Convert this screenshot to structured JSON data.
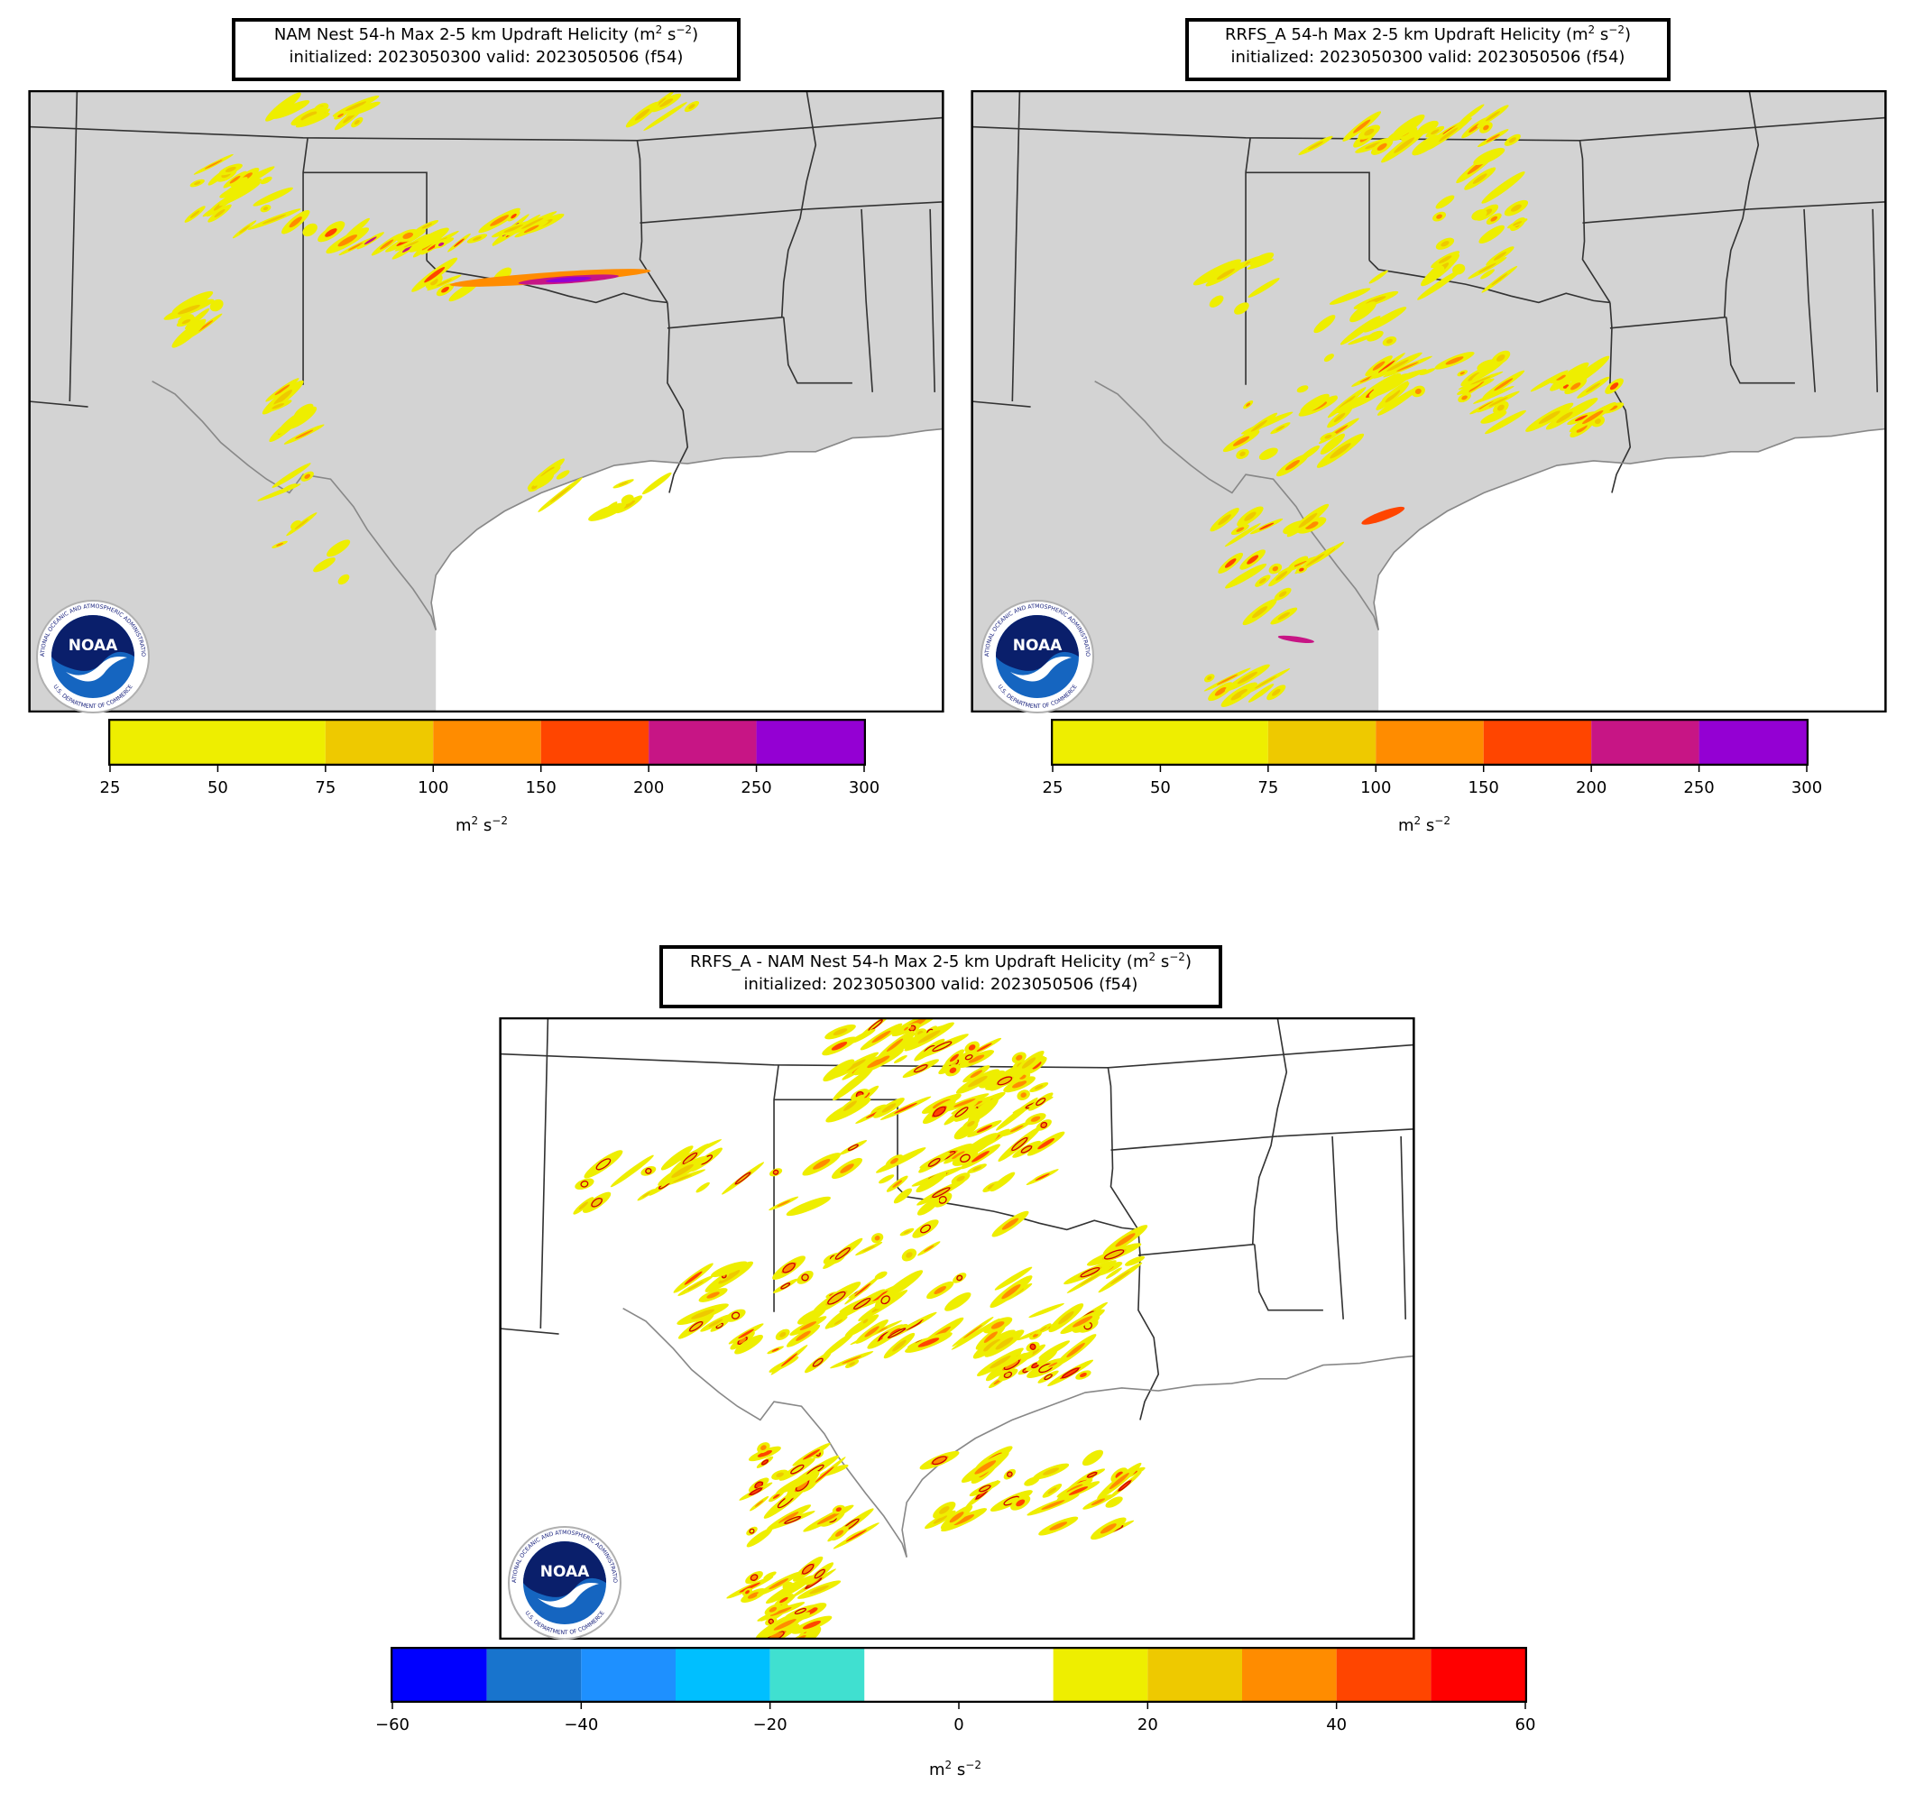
{
  "panels": [
    {
      "id": "nam",
      "title_line1": "NAM Nest 54-h Max 2-5 km Updraft Helicity (m",
      "title_line2": "initialized: 2023050300 valid: 2023050506 (f54)",
      "land_fill": "#d3d3d3",
      "colorbar": {
        "label": "m",
        "levels": [
          25,
          50,
          75,
          100,
          150,
          200,
          250,
          300
        ],
        "bins": [
          {
            "from": 25,
            "to": 75,
            "color": "#eeee00"
          },
          {
            "from": 75,
            "to": 100,
            "color": "#eec900"
          },
          {
            "from": 100,
            "to": 150,
            "color": "#ff8c00"
          },
          {
            "from": 150,
            "to": 200,
            "color": "#ff4500"
          },
          {
            "from": 200,
            "to": 250,
            "color": "#c71585"
          },
          {
            "from": 250,
            "to": 300,
            "color": "#9400d3"
          }
        ],
        "ticks": [
          "25",
          "50",
          "75",
          "100",
          "150",
          "200",
          "250",
          "300"
        ]
      }
    },
    {
      "id": "rrfs",
      "title_line1": "RRFS_A 54-h Max 2-5 km Updraft Helicity (m",
      "title_line2": "initialized: 2023050300 valid: 2023050506 (f54)",
      "land_fill": "#d3d3d3",
      "colorbar": {
        "label": "m",
        "levels": [
          25,
          50,
          75,
          100,
          150,
          200,
          250,
          300
        ],
        "bins": [
          {
            "from": 25,
            "to": 75,
            "color": "#eeee00"
          },
          {
            "from": 75,
            "to": 100,
            "color": "#eec900"
          },
          {
            "from": 100,
            "to": 150,
            "color": "#ff8c00"
          },
          {
            "from": 150,
            "to": 200,
            "color": "#ff4500"
          },
          {
            "from": 200,
            "to": 250,
            "color": "#c71585"
          },
          {
            "from": 250,
            "to": 300,
            "color": "#9400d3"
          }
        ],
        "ticks": [
          "25",
          "50",
          "75",
          "100",
          "150",
          "200",
          "250",
          "300"
        ]
      }
    },
    {
      "id": "diff",
      "title_line1": "RRFS_A - NAM Nest 54-h Max 2-5 km Updraft Helicity (m",
      "title_line2": "initialized: 2023050300 valid: 2023050506 (f54)",
      "land_fill": "#ffffff",
      "colorbar": {
        "label": "m",
        "levels": [
          -60,
          -50,
          -40,
          -30,
          -20,
          -10,
          0,
          10,
          20,
          30,
          40,
          50,
          60
        ],
        "bins": [
          {
            "from": -60,
            "to": -50,
            "color": "#0000ff"
          },
          {
            "from": -50,
            "to": -40,
            "color": "#1874cd"
          },
          {
            "from": -40,
            "to": -30,
            "color": "#1e90ff"
          },
          {
            "from": -30,
            "to": -20,
            "color": "#00bfff"
          },
          {
            "from": -20,
            "to": -10,
            "color": "#40e0d0"
          },
          {
            "from": -10,
            "to": 10,
            "color": "#ffffff"
          },
          {
            "from": 10,
            "to": 20,
            "color": "#eeee00"
          },
          {
            "from": 20,
            "to": 30,
            "color": "#eec900"
          },
          {
            "from": 30,
            "to": 40,
            "color": "#ff8c00"
          },
          {
            "from": 40,
            "to": 50,
            "color": "#ff4500"
          },
          {
            "from": 50,
            "to": 60,
            "color": "#ff0000"
          }
        ],
        "ticks": [
          "−60",
          "−40",
          "−20",
          "0",
          "20",
          "40",
          "60"
        ],
        "tick_values": [
          -60,
          -40,
          -20,
          0,
          20,
          40,
          60
        ]
      }
    }
  ],
  "logo": {
    "text": "NOAA",
    "ring_top": "NATIONAL OCEANIC AND ATMOSPHERIC ADMINISTRATION",
    "ring_bottom": "U.S. DEPARTMENT OF COMMERCE"
  },
  "colors": {
    "uh_low": "#eeee00",
    "uh_mid": "#ff4500",
    "uh_high": "#c71585",
    "uh_top": "#9400d3",
    "diff_contour": "#cc0000",
    "border": "#333333",
    "coast": "#888888"
  }
}
